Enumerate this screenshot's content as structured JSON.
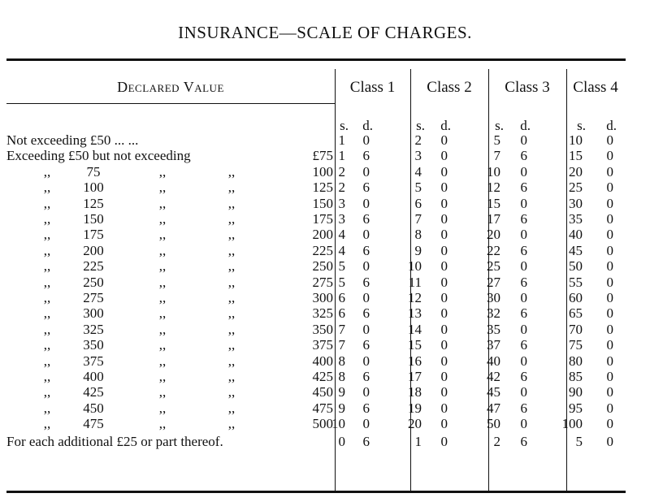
{
  "title": "INSURANCE—SCALE OF CHARGES.",
  "header": {
    "declared_value": "Declared Value",
    "classes": [
      "Class 1",
      "Class 2",
      "Class 3",
      "Class 4"
    ],
    "shillings": "s.",
    "pence": "d."
  },
  "first_rows": [
    {
      "label": "Not exceeding £50 ... ...",
      "charges": [
        [
          "1",
          "0"
        ],
        [
          "2",
          "0"
        ],
        [
          "5",
          "0"
        ],
        [
          "10",
          "0"
        ]
      ]
    },
    {
      "label": "Exceeding £50 but not exceeding",
      "to": "£75",
      "charges": [
        [
          "1",
          "6"
        ],
        [
          "3",
          "0"
        ],
        [
          "7",
          "6"
        ],
        [
          "15",
          "0"
        ]
      ]
    }
  ],
  "ditto_mark": ",,",
  "range_rows": [
    {
      "from": "75",
      "to": "100",
      "charges": [
        [
          "2",
          "0"
        ],
        [
          "4",
          "0"
        ],
        [
          "10",
          "0"
        ],
        [
          "20",
          "0"
        ]
      ]
    },
    {
      "from": "100",
      "to": "125",
      "charges": [
        [
          "2",
          "6"
        ],
        [
          "5",
          "0"
        ],
        [
          "12",
          "6"
        ],
        [
          "25",
          "0"
        ]
      ]
    },
    {
      "from": "125",
      "to": "150",
      "charges": [
        [
          "3",
          "0"
        ],
        [
          "6",
          "0"
        ],
        [
          "15",
          "0"
        ],
        [
          "30",
          "0"
        ]
      ]
    },
    {
      "from": "150",
      "to": "175",
      "charges": [
        [
          "3",
          "6"
        ],
        [
          "7",
          "0"
        ],
        [
          "17",
          "6"
        ],
        [
          "35",
          "0"
        ]
      ]
    },
    {
      "from": "175",
      "to": "200",
      "charges": [
        [
          "4",
          "0"
        ],
        [
          "8",
          "0"
        ],
        [
          "20",
          "0"
        ],
        [
          "40",
          "0"
        ]
      ]
    },
    {
      "from": "200",
      "to": "225",
      "charges": [
        [
          "4",
          "6"
        ],
        [
          "9",
          "0"
        ],
        [
          "22",
          "6"
        ],
        [
          "45",
          "0"
        ]
      ]
    },
    {
      "from": "225",
      "to": "250",
      "charges": [
        [
          "5",
          "0"
        ],
        [
          "10",
          "0"
        ],
        [
          "25",
          "0"
        ],
        [
          "50",
          "0"
        ]
      ]
    },
    {
      "from": "250",
      "to": "275",
      "charges": [
        [
          "5",
          "6"
        ],
        [
          "11",
          "0"
        ],
        [
          "27",
          "6"
        ],
        [
          "55",
          "0"
        ]
      ]
    },
    {
      "from": "275",
      "to": "300",
      "charges": [
        [
          "6",
          "0"
        ],
        [
          "12",
          "0"
        ],
        [
          "30",
          "0"
        ],
        [
          "60",
          "0"
        ]
      ]
    },
    {
      "from": "300",
      "to": "325",
      "charges": [
        [
          "6",
          "6"
        ],
        [
          "13",
          "0"
        ],
        [
          "32",
          "6"
        ],
        [
          "65",
          "0"
        ]
      ]
    },
    {
      "from": "325",
      "to": "350",
      "charges": [
        [
          "7",
          "0"
        ],
        [
          "14",
          "0"
        ],
        [
          "35",
          "0"
        ],
        [
          "70",
          "0"
        ]
      ]
    },
    {
      "from": "350",
      "to": "375",
      "charges": [
        [
          "7",
          "6"
        ],
        [
          "15",
          "0"
        ],
        [
          "37",
          "6"
        ],
        [
          "75",
          "0"
        ]
      ]
    },
    {
      "from": "375",
      "to": "400",
      "charges": [
        [
          "8",
          "0"
        ],
        [
          "16",
          "0"
        ],
        [
          "40",
          "0"
        ],
        [
          "80",
          "0"
        ]
      ]
    },
    {
      "from": "400",
      "to": "425",
      "charges": [
        [
          "8",
          "6"
        ],
        [
          "17",
          "0"
        ],
        [
          "42",
          "6"
        ],
        [
          "85",
          "0"
        ]
      ]
    },
    {
      "from": "425",
      "to": "450",
      "charges": [
        [
          "9",
          "0"
        ],
        [
          "18",
          "0"
        ],
        [
          "45",
          "0"
        ],
        [
          "90",
          "0"
        ]
      ]
    },
    {
      "from": "450",
      "to": "475",
      "charges": [
        [
          "9",
          "6"
        ],
        [
          "19",
          "0"
        ],
        [
          "47",
          "6"
        ],
        [
          "95",
          "0"
        ]
      ]
    },
    {
      "from": "475",
      "to": "500",
      "charges": [
        [
          "10",
          "0"
        ],
        [
          "20",
          "0"
        ],
        [
          "50",
          "0"
        ],
        [
          "100",
          "0"
        ]
      ]
    }
  ],
  "last_row": {
    "label": "For each additional £25 or part thereof.",
    "charges": [
      [
        "0",
        "6"
      ],
      [
        "1",
        "0"
      ],
      [
        "2",
        "6"
      ],
      [
        "5",
        "0"
      ]
    ]
  }
}
